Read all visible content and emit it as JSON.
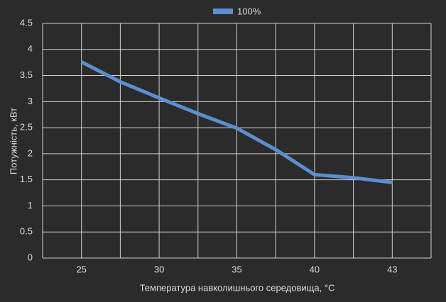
{
  "chart_data": {
    "type": "line",
    "x_label": "Температура навколишнього середовища, °C",
    "y_label": "Потужність, кВт",
    "categories": [
      "25",
      null,
      "30",
      null,
      "35",
      null,
      "40",
      null,
      "43"
    ],
    "series": [
      {
        "name": "100%",
        "color": "#5b8fcf",
        "values": [
          3.76,
          3.38,
          3.07,
          2.77,
          2.49,
          2.08,
          1.6,
          1.54,
          1.45
        ]
      }
    ],
    "ylim": [
      0,
      4.5
    ],
    "yticks": [
      0,
      0.5,
      1,
      1.5,
      2,
      2.5,
      3,
      3.5,
      4,
      4.5
    ],
    "grid": true,
    "legend": "top"
  }
}
